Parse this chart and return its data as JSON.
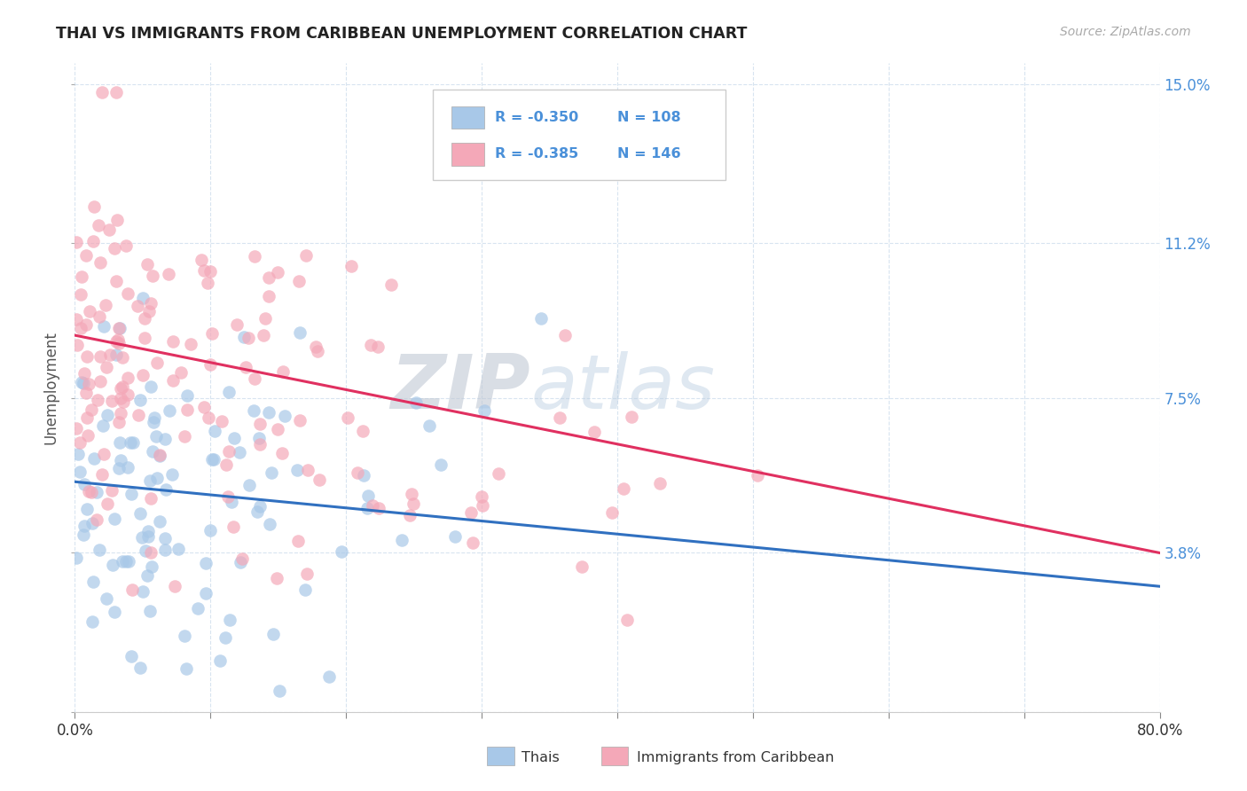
{
  "title": "THAI VS IMMIGRANTS FROM CARIBBEAN UNEMPLOYMENT CORRELATION CHART",
  "source": "Source: ZipAtlas.com",
  "ylabel": "Unemployment",
  "xlim": [
    0.0,
    0.8
  ],
  "ylim": [
    0.0,
    0.155
  ],
  "ytick_values": [
    0.0,
    0.038,
    0.075,
    0.112,
    0.15
  ],
  "xtick_values": [
    0.0,
    0.1,
    0.2,
    0.3,
    0.4,
    0.5,
    0.6,
    0.7,
    0.8
  ],
  "legend_labels": [
    "Thais",
    "Immigrants from Caribbean"
  ],
  "legend_R1": "-0.350",
  "legend_N1": "108",
  "legend_R2": "-0.385",
  "legend_N2": "146",
  "color_blue": "#a8c8e8",
  "color_pink": "#f4a8b8",
  "line_blue": "#3070c0",
  "line_pink": "#e03060",
  "watermark_zip": "ZIP",
  "watermark_atlas": "atlas",
  "background_color": "#ffffff",
  "grid_color": "#d8e4f0",
  "title_color": "#222222",
  "source_color": "#aaaaaa",
  "axis_label_color": "#555555",
  "tick_color_right": "#4a90d9",
  "legend_text_color": "#4a90d9",
  "N_blue": 108,
  "N_pink": 146,
  "blue_line_x0": 0.0,
  "blue_line_y0": 0.055,
  "blue_line_x1": 0.8,
  "blue_line_y1": 0.03,
  "pink_line_x0": 0.0,
  "pink_line_y0": 0.09,
  "pink_line_x1": 0.8,
  "pink_line_y1": 0.038
}
